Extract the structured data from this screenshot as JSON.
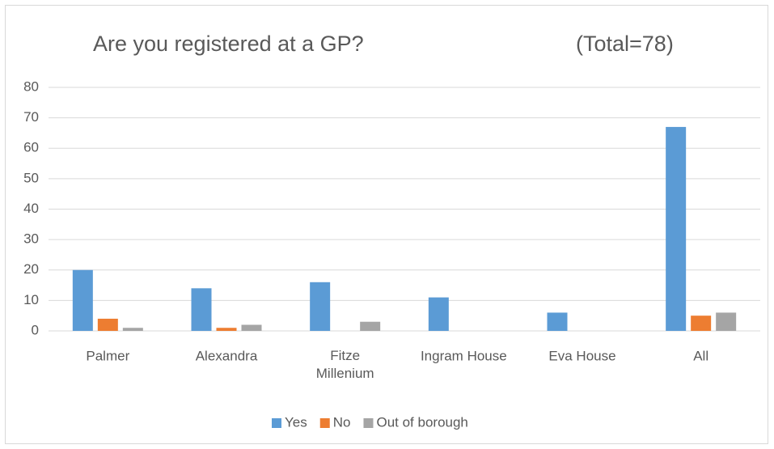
{
  "chart_data": {
    "type": "bar",
    "title": "Are you registered at a GP?",
    "subtitle": "(Total=78)",
    "categories": [
      "Palmer",
      "Alexandra",
      "Fitze Millenium",
      "Ingram House",
      "Eva House",
      "All"
    ],
    "series": [
      {
        "name": "Yes",
        "color": "#5b9bd5",
        "values": [
          20,
          14,
          16,
          11,
          6,
          67
        ]
      },
      {
        "name": "No",
        "color": "#ed7d31",
        "values": [
          4,
          1,
          0,
          0,
          0,
          5
        ]
      },
      {
        "name": "Out of borough",
        "color": "#a5a5a5",
        "values": [
          1,
          2,
          3,
          0,
          0,
          6
        ]
      }
    ],
    "ylim": [
      0,
      80
    ],
    "yticks": [
      0,
      10,
      20,
      30,
      40,
      50,
      60,
      70,
      80
    ],
    "grid": true,
    "legend": "bottom"
  }
}
